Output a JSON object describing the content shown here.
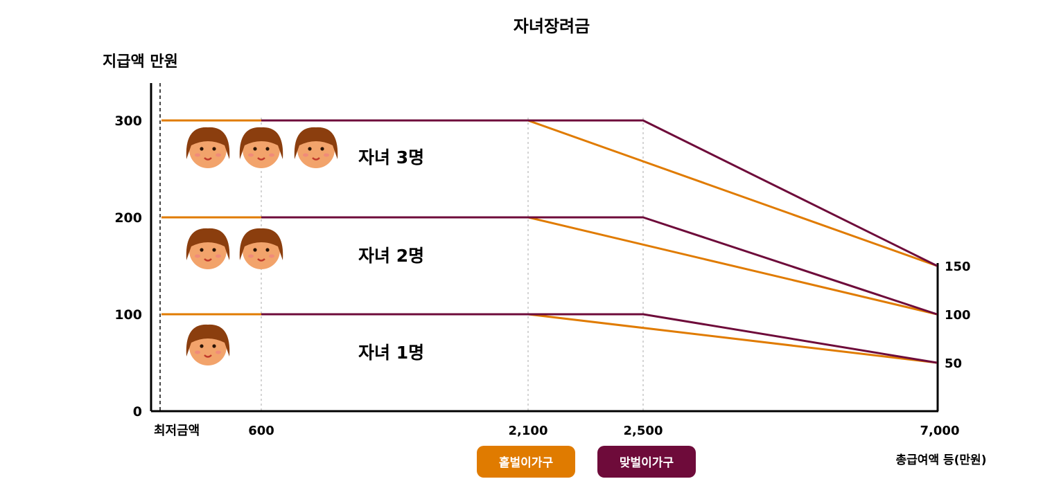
{
  "chart_data": {
    "type": "line",
    "title": "자녀장려금",
    "ylabel": "지급액 만원",
    "xlabel": "총급여액 등(만원)",
    "ylim": [
      0,
      300
    ],
    "y_ticks_left": [
      "0",
      "100",
      "200",
      "300"
    ],
    "y_ticks_right": [
      "50",
      "100",
      "150"
    ],
    "x_ticks": [
      {
        "value": 0,
        "label": "최저금액"
      },
      {
        "value": 600,
        "label": "600"
      },
      {
        "value": 2100,
        "label": "2,100"
      },
      {
        "value": 2500,
        "label": "2,500"
      },
      {
        "value": 7000,
        "label": "7,000"
      }
    ],
    "groups": [
      {
        "label": "자녀 3명",
        "faces": 3
      },
      {
        "label": "자녀 2명",
        "faces": 2
      },
      {
        "label": "자녀 1명",
        "faces": 1
      }
    ],
    "series": [
      {
        "name": "홑벌이가구",
        "color": "#E07B00",
        "lines": [
          [
            [
              0,
              300
            ],
            [
              2100,
              300
            ],
            [
              7000,
              150
            ]
          ],
          [
            [
              0,
              200
            ],
            [
              2100,
              200
            ],
            [
              7000,
              100
            ]
          ],
          [
            [
              0,
              100
            ],
            [
              2100,
              100
            ],
            [
              7000,
              50
            ]
          ]
        ]
      },
      {
        "name": "맞벌이가구",
        "color": "#6E0B3A",
        "lines": [
          [
            [
              600,
              300
            ],
            [
              2500,
              300
            ],
            [
              7000,
              150
            ]
          ],
          [
            [
              600,
              200
            ],
            [
              2500,
              200
            ],
            [
              7000,
              100
            ]
          ],
          [
            [
              600,
              100
            ],
            [
              2500,
              100
            ],
            [
              7000,
              50
            ]
          ]
        ]
      }
    ],
    "legend_position": "bottom",
    "grid": false
  }
}
